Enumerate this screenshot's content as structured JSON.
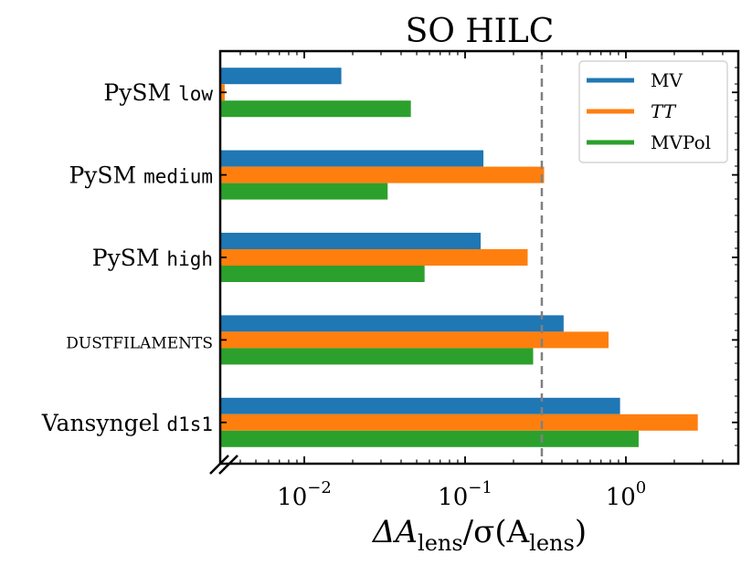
{
  "chart_data": {
    "type": "bar",
    "orientation": "horizontal",
    "title": "SO HILC",
    "xlabel": {
      "base": "ΔA",
      "sub": "lens",
      "mid": "/σ(A",
      "sub2": "lens",
      "end": ")"
    },
    "xscale": "log",
    "xlim": [
      0.003,
      5.0
    ],
    "xticks": [
      {
        "value": 0.01,
        "base": "10",
        "exp": "−2"
      },
      {
        "value": 0.1,
        "base": "10",
        "exp": "−1"
      },
      {
        "value": 1,
        "base": "10",
        "exp": "0"
      }
    ],
    "reference_line": {
      "x": 0.3,
      "style": "dashed",
      "color": "#808080"
    },
    "categories": [
      {
        "name": "PySM",
        "code": "low"
      },
      {
        "name": "PySM",
        "code": "medium"
      },
      {
        "name": "PySM",
        "code": "high"
      },
      {
        "name": "DUSTFILAMENTS",
        "code": ""
      },
      {
        "name": "Vansyngel",
        "code": "d1s1"
      }
    ],
    "series": [
      {
        "name": "MV",
        "color": "#1f77b4",
        "values": [
          0.017,
          0.13,
          0.125,
          0.41,
          0.92
        ]
      },
      {
        "name": "TT",
        "color": "#ff7f0e",
        "values": [
          0.0032,
          0.31,
          0.245,
          0.78,
          2.8
        ]
      },
      {
        "name": "MVPol",
        "color": "#2ca02c",
        "values": [
          0.046,
          0.033,
          0.056,
          0.265,
          1.2
        ]
      }
    ],
    "legend": {
      "position": "top-right",
      "entries": [
        "MV",
        "TT",
        "MVPol"
      ]
    }
  }
}
